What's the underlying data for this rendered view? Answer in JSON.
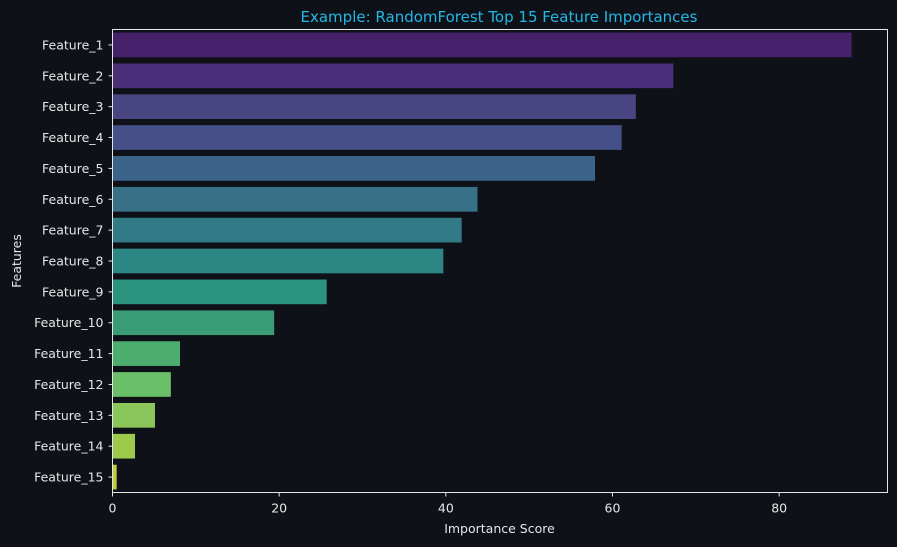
{
  "chart_data": {
    "type": "bar",
    "orientation": "horizontal",
    "title": "Example: RandomForest Top 15 Feature Importances",
    "xlabel": "Importance Score",
    "ylabel": "Features",
    "categories": [
      "Feature_1",
      "Feature_2",
      "Feature_3",
      "Feature_4",
      "Feature_5",
      "Feature_6",
      "Feature_7",
      "Feature_8",
      "Feature_9",
      "Feature_10",
      "Feature_11",
      "Feature_12",
      "Feature_13",
      "Feature_14",
      "Feature_15"
    ],
    "values": [
      88.7,
      67.3,
      62.8,
      61.1,
      57.9,
      43.8,
      41.9,
      39.7,
      25.7,
      19.4,
      8.1,
      7.0,
      5.1,
      2.7,
      0.5
    ],
    "xlim": [
      0,
      93
    ],
    "xticks": [
      0,
      20,
      40,
      60,
      80
    ],
    "grid": false,
    "legend": "none",
    "colors": [
      "#46206a",
      "#4b2f7a",
      "#4a4583",
      "#454f88",
      "#3c648a",
      "#387187",
      "#327a86",
      "#2c8683",
      "#2c947e",
      "#3a9c76",
      "#4dad6e",
      "#6bbf68",
      "#8bc65a",
      "#9dc94c",
      "#bfcf3d"
    ],
    "background": "#0e1117",
    "title_color": "#22b8e6",
    "text_color": "#e6e6e6"
  }
}
